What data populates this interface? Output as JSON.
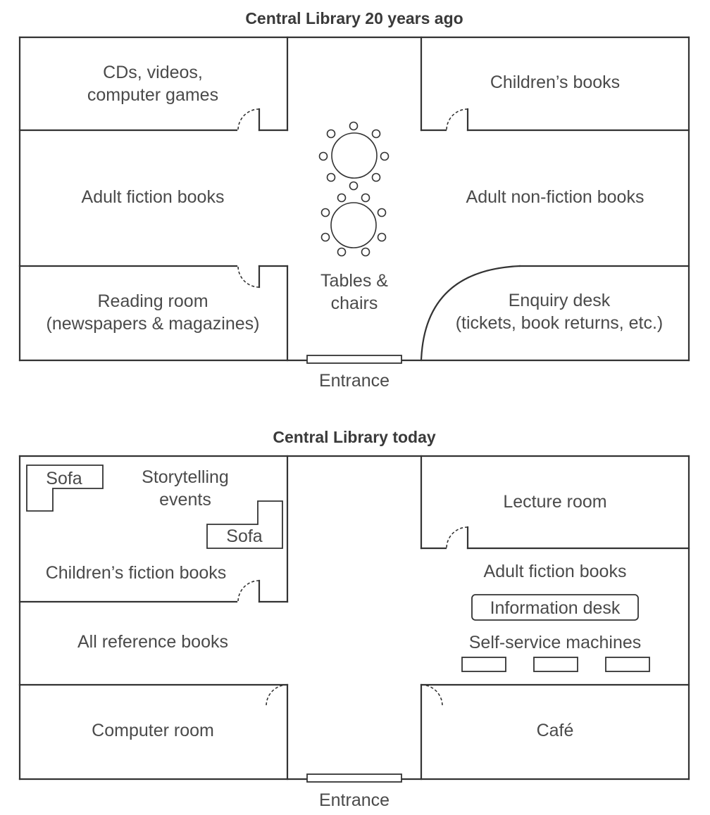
{
  "past": {
    "title": "Central Library 20 years ago",
    "rooms": {
      "cds_line1": "CDs, videos,",
      "cds_line2": "computer games",
      "childrens_books": "Children’s books",
      "adult_fiction": "Adult fiction books",
      "adult_nonfiction": "Adult non-fiction books",
      "tables_line1": "Tables &",
      "tables_line2": "chairs",
      "reading_line1": "Reading room",
      "reading_line2": "(newspapers & magazines)",
      "enquiry_line1": "Enquiry desk",
      "enquiry_line2": "(tickets, book returns, etc.)"
    },
    "entrance": "Entrance"
  },
  "today": {
    "title": "Central Library today",
    "rooms": {
      "sofa_1": "Sofa",
      "sofa_2": "Sofa",
      "story_line1": "Storytelling",
      "story_line2": "events",
      "children_fiction": "Children’s fiction books",
      "lecture_room": "Lecture room",
      "adult_fiction": "Adult fiction books",
      "information_desk": "Information desk",
      "self_service": "Self-service machines",
      "reference": "All reference books",
      "computer_room": "Computer room",
      "cafe": "Café"
    },
    "entrance": "Entrance"
  }
}
